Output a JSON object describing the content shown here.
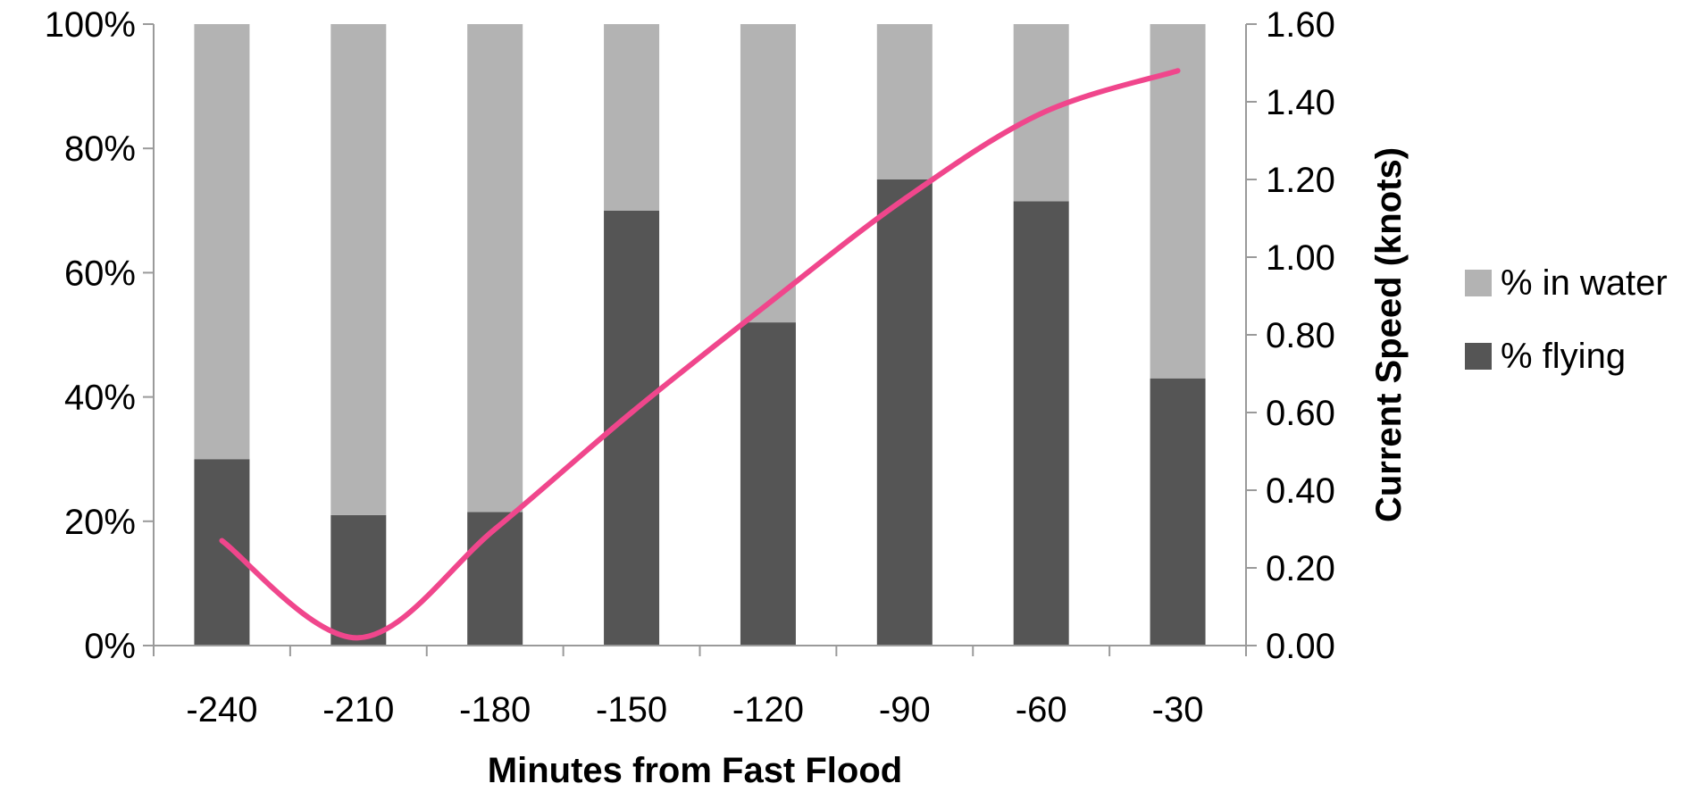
{
  "chart_data": {
    "type": "bar",
    "stacked": true,
    "categories": [
      "-240",
      "-210",
      "-180",
      "-150",
      "-120",
      "-90",
      "-60",
      "-30"
    ],
    "series": [
      {
        "name": "% flying",
        "kind": "bar",
        "axis": "left",
        "color": "#555555",
        "values": [
          30,
          21,
          21.5,
          70,
          52,
          75,
          71.5,
          43
        ]
      },
      {
        "name": "% in water",
        "kind": "bar",
        "axis": "left",
        "color": "#b3b3b3",
        "values": [
          70,
          79,
          78.5,
          30,
          48,
          25,
          28.5,
          57
        ]
      },
      {
        "name": "",
        "kind": "line",
        "axis": "right",
        "color": "#f0468c",
        "values": [
          0.27,
          0.02,
          0.3,
          0.6,
          0.88,
          1.15,
          1.37,
          1.48
        ]
      }
    ],
    "title": "",
    "xlabel": "Minutes from Fast Flood",
    "ylabel": "",
    "y2label": "Current Speed (knots)",
    "ylim": [
      0,
      100
    ],
    "y2lim": [
      0,
      1.6
    ],
    "yticks": [
      "0%",
      "20%",
      "40%",
      "60%",
      "80%",
      "100%"
    ],
    "y2ticks": [
      "0.00",
      "0.20",
      "0.40",
      "0.60",
      "0.80",
      "1.00",
      "1.20",
      "1.40",
      "1.60"
    ],
    "legend": [
      {
        "label": "% in water",
        "color": "#b3b3b3"
      },
      {
        "label": "% flying",
        "color": "#555555"
      }
    ],
    "legend_position": "right",
    "grid": false
  }
}
